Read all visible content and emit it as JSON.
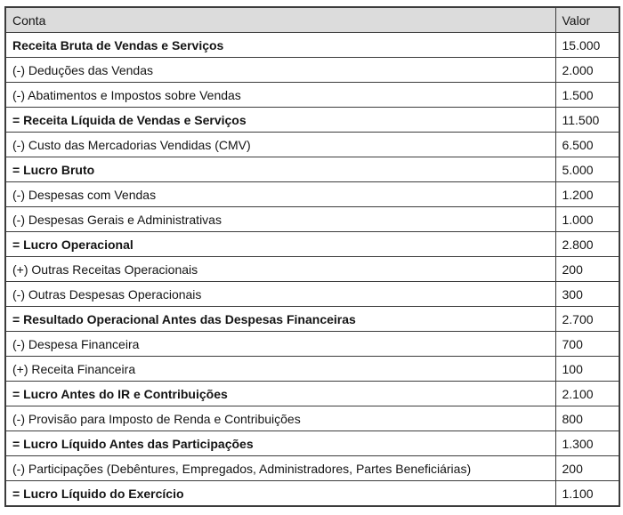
{
  "colors": {
    "background": "#ffffff",
    "header_bg": "#dcdcdc",
    "border": "#3c3c3c",
    "text": "#141414"
  },
  "table": {
    "columns": [
      "Conta",
      "Valor"
    ],
    "rows": [
      {
        "conta": "Receita Bruta de Vendas e Serviços",
        "valor": "15.000",
        "bold": true
      },
      {
        "conta": "(-) Deduções das Vendas",
        "valor": "2.000",
        "bold": false
      },
      {
        "conta": "(-) Abatimentos e Impostos sobre Vendas",
        "valor": "1.500",
        "bold": false
      },
      {
        "conta": "= Receita Líquida de Vendas e Serviços",
        "valor": "11.500",
        "bold": true
      },
      {
        "conta": "(-) Custo das Mercadorias Vendidas (CMV)",
        "valor": "6.500",
        "bold": false
      },
      {
        "conta": "= Lucro Bruto",
        "valor": "5.000",
        "bold": true
      },
      {
        "conta": "(-) Despesas com Vendas",
        "valor": "1.200",
        "bold": false
      },
      {
        "conta": "(-) Despesas Gerais e Administrativas",
        "valor": "1.000",
        "bold": false
      },
      {
        "conta": "= Lucro Operacional",
        "valor": "2.800",
        "bold": true
      },
      {
        "conta": "(+) Outras Receitas Operacionais",
        "valor": "200",
        "bold": false
      },
      {
        "conta": "(-) Outras Despesas Operacionais",
        "valor": "300",
        "bold": false
      },
      {
        "conta": "= Resultado Operacional Antes das Despesas Financeiras",
        "valor": "2.700",
        "bold": true
      },
      {
        "conta": "(-) Despesa Financeira",
        "valor": "700",
        "bold": false
      },
      {
        "conta": "(+) Receita Financeira",
        "valor": "100",
        "bold": false
      },
      {
        "conta": "= Lucro Antes do IR e Contribuições",
        "valor": "2.100",
        "bold": true
      },
      {
        "conta": "(-) Provisão para Imposto de Renda e Contribuições",
        "valor": "800",
        "bold": false
      },
      {
        "conta": "= Lucro Líquido Antes das Participações",
        "valor": "1.300",
        "bold": true
      },
      {
        "conta": "(-) Participações (Debêntures, Empregados, Administradores, Partes Beneficiárias)",
        "valor": "200",
        "bold": false
      },
      {
        "conta": "= Lucro Líquido do Exercício",
        "valor": "1.100",
        "bold": true
      }
    ]
  }
}
